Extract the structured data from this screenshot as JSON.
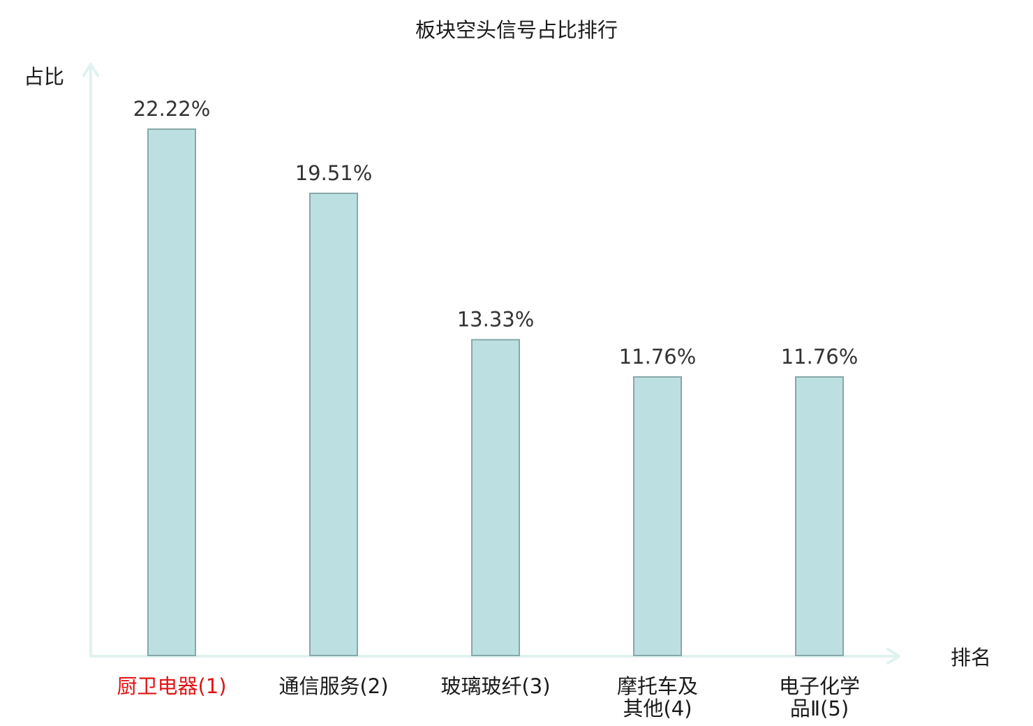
{
  "chart_data": {
    "type": "bar",
    "title": "板块空头信号占比排行",
    "xlabel": "排名",
    "ylabel": "占比",
    "categories": [
      [
        "厨卫电器(1)"
      ],
      [
        "通信服务(2)"
      ],
      [
        "玻璃玻纤(3)"
      ],
      [
        "摩托车及",
        "其他(4)"
      ],
      [
        "电子化学",
        "品Ⅱ(5)"
      ]
    ],
    "values": [
      22.22,
      19.51,
      13.33,
      11.76,
      11.76
    ],
    "value_labels": [
      "22.22%",
      "19.51%",
      "13.33%",
      "11.76%",
      "11.76%"
    ],
    "ylim": [
      0,
      25
    ],
    "grid": false,
    "highlight_index": 0,
    "colors": {
      "bar_fill": "#bce0e1",
      "bar_stroke": "#86a8a8",
      "axis": "#e0f2ef",
      "highlight_text": "#e01414"
    }
  }
}
